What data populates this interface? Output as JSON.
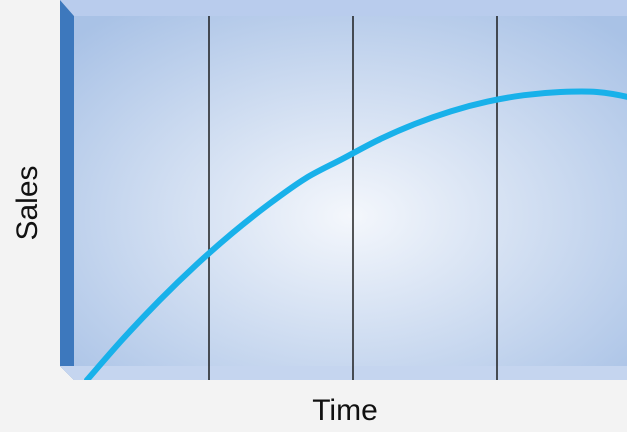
{
  "chart_data": {
    "type": "line",
    "xlabel": "Time",
    "ylabel": "Sales",
    "xlim": [
      0,
      4
    ],
    "ylim": [
      0,
      1
    ],
    "grid": "vertical",
    "vertical_lines_x": [
      1,
      2,
      3
    ],
    "series": [
      {
        "color": "#18b1ea",
        "x": [
          0,
          0.25,
          0.5,
          0.75,
          1,
          1.25,
          1.5,
          1.75,
          2,
          2.25,
          2.5,
          2.75,
          3,
          3.25,
          3.5,
          3.75,
          4
        ],
        "y": [
          0,
          0.13,
          0.25,
          0.36,
          0.46,
          0.55,
          0.63,
          0.69,
          0.75,
          0.8,
          0.84,
          0.87,
          0.89,
          0.9,
          0.9,
          0.88,
          0.84
        ]
      }
    ]
  },
  "colors": {
    "plot_face": "#a9c2e6",
    "plot_glow": "#f4f7fc",
    "top_bevel": "#b9cced",
    "left_bevel": "#3d78bd",
    "bottom_bevel": "#c5d5ef",
    "grid_line": "#111111",
    "curve": "#18b1ea"
  }
}
